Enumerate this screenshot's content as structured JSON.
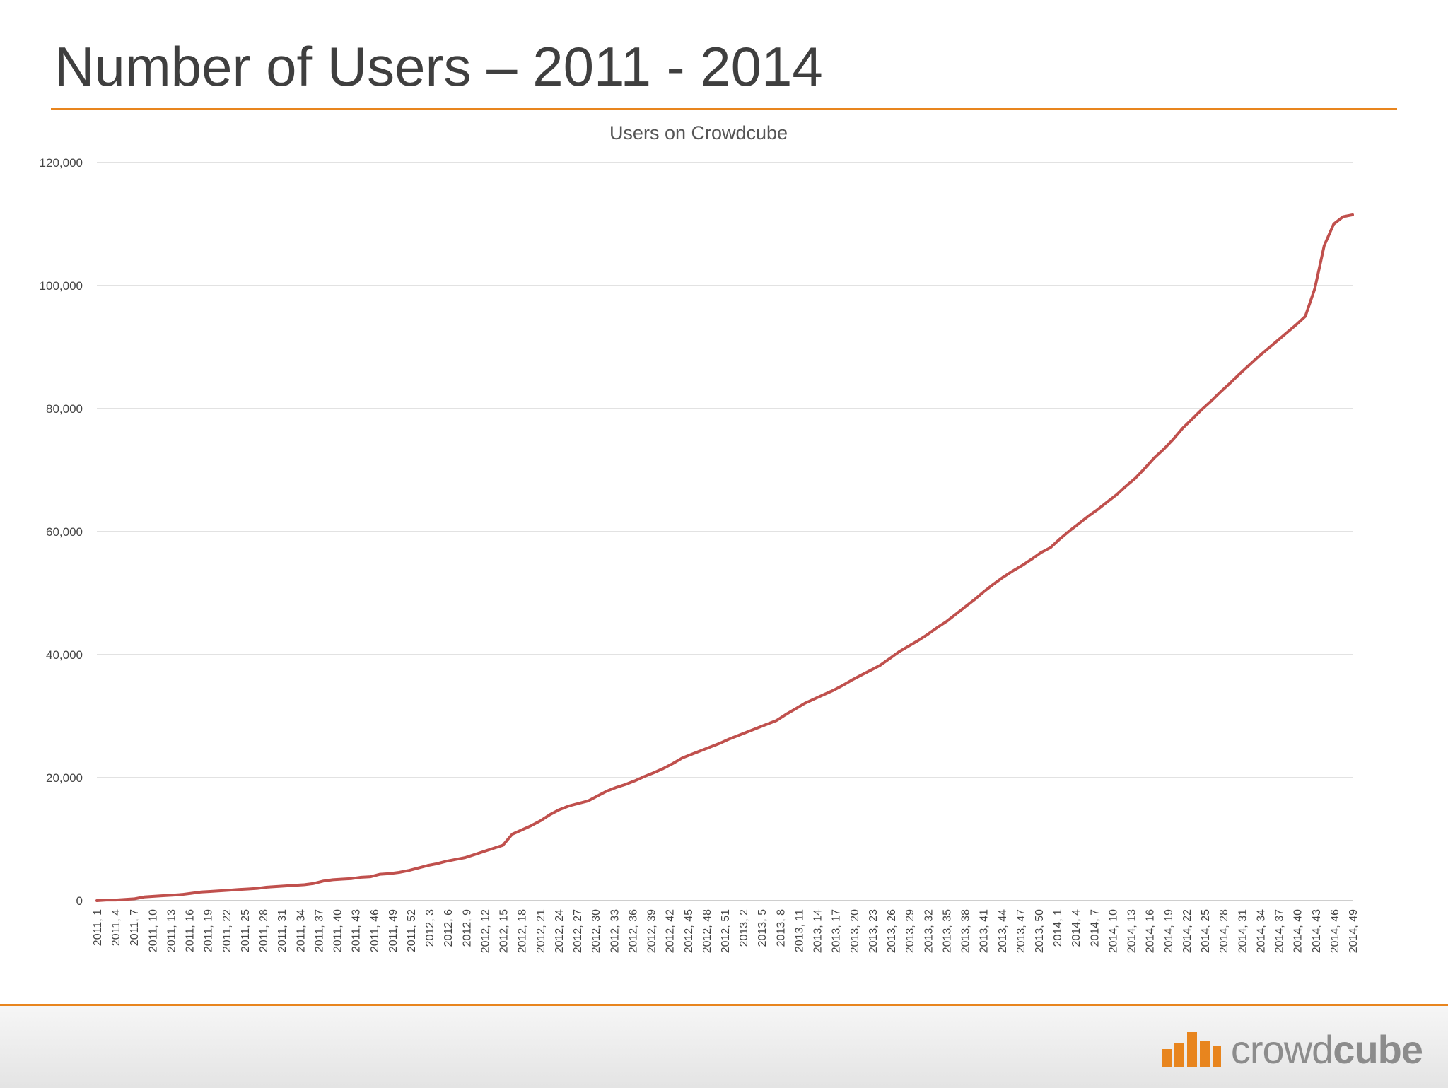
{
  "slide": {
    "title": "Number of Users – 2011 - 2014",
    "accent_color": "#e8851e"
  },
  "footer": {
    "logo_icon": "crowdcube-bars-logo-icon",
    "logo_text_light": "crowd",
    "logo_text_bold": "cube",
    "logo_color": "#e8851e"
  },
  "chart_data": {
    "type": "line",
    "title": "Users on Crowdcube",
    "xlabel": "",
    "ylabel": "",
    "ylim": [
      0,
      120000
    ],
    "yticks": [
      0,
      20000,
      40000,
      60000,
      80000,
      100000,
      120000
    ],
    "ytick_labels": [
      "0",
      "20,000",
      "40,000",
      "60,000",
      "80,000",
      "100,000",
      "120,000"
    ],
    "x_tick_labels": [
      "2011, 1",
      "2011, 4",
      "2011, 7",
      "2011, 10",
      "2011, 13",
      "2011, 16",
      "2011, 19",
      "2011, 22",
      "2011, 25",
      "2011, 28",
      "2011, 31",
      "2011, 34",
      "2011, 37",
      "2011, 40",
      "2011, 43",
      "2011, 46",
      "2011, 49",
      "2011, 52",
      "2012, 3",
      "2012, 6",
      "2012, 9",
      "2012, 12",
      "2012, 15",
      "2012, 18",
      "2012, 21",
      "2012, 24",
      "2012, 27",
      "2012, 30",
      "2012, 33",
      "2012, 36",
      "2012, 39",
      "2012, 42",
      "2012, 45",
      "2012, 48",
      "2012, 51",
      "2013, 2",
      "2013, 5",
      "2013, 8",
      "2013, 11",
      "2013, 14",
      "2013, 17",
      "2013, 20",
      "2013, 23",
      "2013, 26",
      "2013, 29",
      "2013, 32",
      "2013, 35",
      "2013, 38",
      "2013, 41",
      "2013, 44",
      "2013, 47",
      "2013, 50",
      "2014, 1",
      "2014, 4",
      "2014, 7",
      "2014, 10",
      "2014, 13",
      "2014, 16",
      "2014, 19",
      "2014, 22",
      "2014, 25",
      "2014, 28",
      "2014, 31",
      "2014, 34",
      "2014, 37",
      "2014, 40",
      "2014, 43",
      "2014, 46",
      "2014, 49"
    ],
    "grid": true,
    "legend": "none",
    "series": [
      {
        "color": "#c0504d",
        "values": [
          0,
          100,
          100,
          200,
          300,
          600,
          700,
          800,
          900,
          1000,
          1200,
          1400,
          1500,
          1600,
          1700,
          1800,
          1900,
          2000,
          2200,
          2300,
          2400,
          2500,
          2600,
          2800,
          3200,
          3400,
          3500,
          3600,
          3800,
          3900,
          4300,
          4400,
          4600,
          4900,
          5300,
          5700,
          6000,
          6400,
          6700,
          7000,
          7500,
          8000,
          8500,
          9000,
          10800,
          11500,
          12200,
          13000,
          14000,
          14800,
          15400,
          15800,
          16200,
          17000,
          17800,
          18400,
          18900,
          19500,
          20200,
          20800,
          21500,
          22300,
          23200,
          23800,
          24400,
          25000,
          25600,
          26300,
          26900,
          27500,
          28100,
          28700,
          29300,
          30300,
          31200,
          32100,
          32800,
          33500,
          34200,
          35000,
          35900,
          36700,
          37500,
          38300,
          39400,
          40500,
          41400,
          42300,
          43300,
          44400,
          45400,
          46600,
          47800,
          49000,
          50300,
          51500,
          52600,
          53600,
          54500,
          55500,
          56600,
          57400,
          58800,
          60100,
          61300,
          62500,
          63600,
          64800,
          66000,
          67400,
          68700,
          70300,
          72000,
          73400,
          75000,
          76800,
          78300,
          79800,
          81200,
          82700,
          84100,
          85600,
          87000,
          88400,
          89700,
          91000,
          92300,
          93600,
          95000,
          99500,
          106500,
          110000,
          111200,
          111500
        ]
      }
    ]
  }
}
